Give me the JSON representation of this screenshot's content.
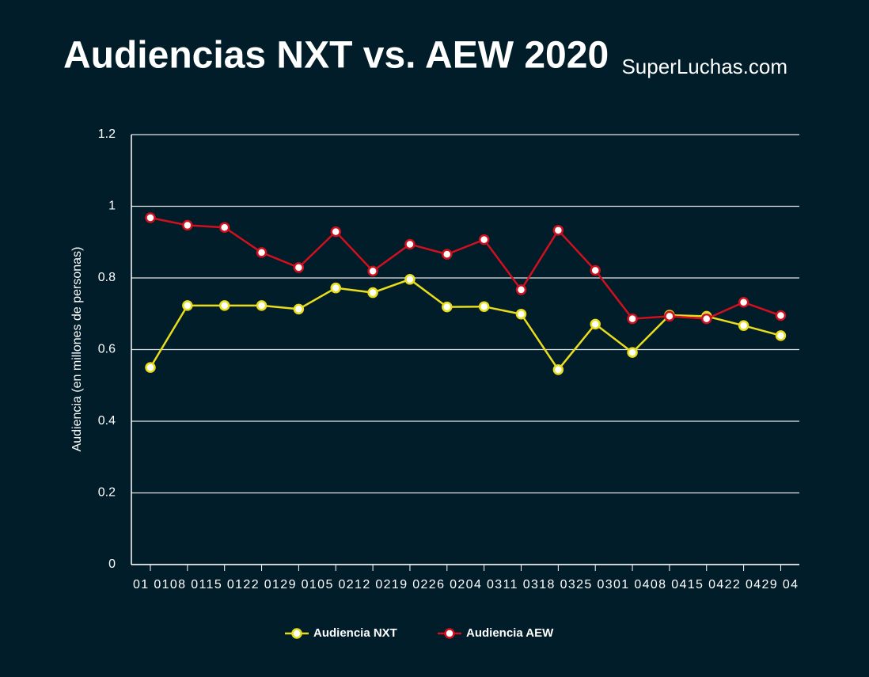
{
  "chart_data": {
    "type": "line",
    "title": "Audiencias NXT vs. AEW 2020",
    "source": "SuperLuchas.com",
    "y_label": "Audiencia (en millones de personas)",
    "x_label_row": "01 0108 0115 0122 0129 0105 0212 0219 0226 0204 0311 0318 0325 0301 0408 0415 0422 0429 04",
    "categories": [
      null,
      null,
      null,
      null,
      null,
      null,
      null,
      null,
      null,
      null,
      null,
      null,
      null,
      null,
      null,
      null,
      null,
      null
    ],
    "series": [
      {
        "name": "Audiencia NXT",
        "color": "#e8dc1c",
        "values": [
          0.55,
          0.723,
          0.723,
          0.723,
          0.713,
          0.772,
          0.759,
          0.796,
          0.719,
          0.72,
          0.699,
          0.544,
          0.671,
          0.592,
          0.696,
          0.693,
          0.667,
          0.639
        ]
      },
      {
        "name": "Audiencia AEW",
        "color": "#d0101e",
        "values": [
          0.968,
          0.947,
          0.941,
          0.871,
          0.829,
          0.929,
          0.819,
          0.894,
          0.866,
          0.907,
          0.767,
          0.933,
          0.821,
          0.686,
          0.693,
          0.686,
          0.732,
          0.695
        ]
      }
    ],
    "ylim": [
      0,
      1.2
    ],
    "yticks": [
      0,
      0.2,
      0.4,
      0.6,
      0.8,
      1,
      1.2
    ],
    "grid": true
  }
}
